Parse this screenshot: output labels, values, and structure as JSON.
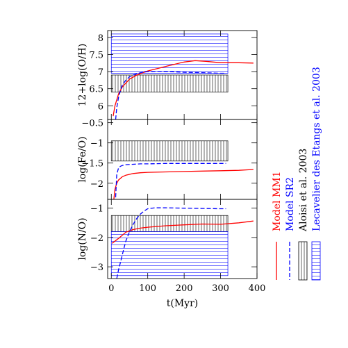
{
  "chart_data": [
    {
      "type": "line",
      "ylabel": "12+log(O/H)",
      "xlim": [
        -10,
        400
      ],
      "ylim": [
        5.6,
        8.2
      ],
      "yticks": [
        6,
        6.5,
        7,
        7.5,
        8
      ],
      "ytick_labels": [
        "6",
        "6.5",
        "7",
        "7.5",
        "8"
      ],
      "bands": [
        {
          "source": "Lecavelier des Etangs et al. 2003",
          "style": "horizontal-hatch",
          "x": [
            0,
            320
          ],
          "y": [
            6.95,
            8.1
          ]
        },
        {
          "source": "Aloisi et al. 2003",
          "style": "vertical-hatch",
          "x": [
            0,
            320
          ],
          "y": [
            6.4,
            6.9
          ]
        }
      ],
      "series": [
        {
          "name": "Model MM1",
          "color": "#ff0000",
          "dash": "solid",
          "x": [
            5,
            10,
            20,
            30,
            50,
            70,
            100,
            130,
            160,
            200,
            230,
            260,
            300,
            350,
            390
          ],
          "y": [
            5.7,
            6.0,
            6.35,
            6.55,
            6.78,
            6.9,
            7.02,
            7.1,
            7.18,
            7.28,
            7.32,
            7.3,
            7.26,
            7.26,
            7.25
          ]
        },
        {
          "name": "Model SR2",
          "color": "#0000ff",
          "dash": "dashed",
          "x": [
            12,
            15,
            20,
            25,
            30,
            40,
            50,
            60,
            80,
            100,
            130,
            160,
            200,
            250,
            300,
            315
          ],
          "y": [
            5.6,
            5.95,
            6.25,
            6.45,
            6.6,
            6.75,
            6.85,
            6.9,
            6.97,
            7.0,
            7.01,
            7.0,
            6.98,
            6.97,
            6.95,
            6.95
          ]
        }
      ]
    },
    {
      "type": "line",
      "ylabel": "log(Fe/O)",
      "xlim": [
        -10,
        400
      ],
      "ylim": [
        -2.4,
        -0.42
      ],
      "yticks": [
        -0.5,
        -1,
        -1.5,
        -2
      ],
      "ytick_labels": [
        "−0.5",
        "−1",
        "−1.5",
        "−2"
      ],
      "bands": [
        {
          "source": "Aloisi et al. 2003",
          "style": "vertical-hatch",
          "x": [
            0,
            320
          ],
          "y": [
            -1.45,
            -0.95
          ]
        }
      ],
      "series": [
        {
          "name": "Model MM1",
          "color": "#ff0000",
          "dash": "solid",
          "x": [
            7,
            10,
            15,
            20,
            30,
            40,
            60,
            80,
            100,
            150,
            200,
            250,
            300,
            350,
            390
          ],
          "y": [
            -2.4,
            -2.15,
            -2.0,
            -1.92,
            -1.84,
            -1.8,
            -1.76,
            -1.74,
            -1.73,
            -1.72,
            -1.71,
            -1.7,
            -1.69,
            -1.68,
            -1.66
          ]
        },
        {
          "name": "Model SR2",
          "color": "#0000ff",
          "dash": "dashed",
          "x": [
            12,
            15,
            20,
            25,
            30,
            40,
            60,
            80,
            100,
            150,
            200,
            250,
            300,
            315
          ],
          "y": [
            -2.35,
            -1.78,
            -1.62,
            -1.58,
            -1.56,
            -1.54,
            -1.53,
            -1.52,
            -1.52,
            -1.51,
            -1.51,
            -1.51,
            -1.51,
            -1.51
          ]
        }
      ]
    },
    {
      "type": "line",
      "ylabel": "log(N/O)",
      "xlabel": "t(Myr)",
      "xlim": [
        -10,
        400
      ],
      "ylim": [
        -3.4,
        -0.7
      ],
      "xticks": [
        0,
        100,
        200,
        300,
        400
      ],
      "xtick_labels": [
        "0",
        "100",
        "200",
        "300",
        "400"
      ],
      "yticks": [
        -1,
        -2,
        -3
      ],
      "ytick_labels": [
        "−1",
        "−2",
        "−3"
      ],
      "bands": [
        {
          "source": "Aloisi et al. 2003",
          "style": "vertical-hatch",
          "x": [
            0,
            320
          ],
          "y": [
            -1.8,
            -1.25
          ]
        },
        {
          "source": "Lecavelier des Etangs et al. 2003",
          "style": "horizontal-hatch",
          "x": [
            0,
            320
          ],
          "y": [
            -3.3,
            -1.8
          ]
        }
      ],
      "series": [
        {
          "name": "Model MM1",
          "color": "#ff0000",
          "dash": "solid",
          "x": [
            2,
            20,
            40,
            60,
            80,
            100,
            150,
            200,
            250,
            300,
            350,
            390
          ],
          "y": [
            -2.2,
            -2.03,
            -1.82,
            -1.73,
            -1.68,
            -1.65,
            -1.6,
            -1.57,
            -1.54,
            -1.55,
            -1.5,
            -1.44
          ]
        },
        {
          "name": "Model SR2",
          "color": "#0000ff",
          "dash": "dashed",
          "x": [
            15,
            20,
            25,
            30,
            35,
            40,
            50,
            60,
            70,
            80,
            90,
            100,
            120,
            150,
            200,
            250,
            300,
            315
          ],
          "y": [
            -3.4,
            -3.1,
            -2.85,
            -2.6,
            -2.35,
            -2.12,
            -1.8,
            -1.55,
            -1.35,
            -1.2,
            -1.1,
            -1.02,
            -0.99,
            -0.99,
            -1.0,
            -1.01,
            -1.02,
            -1.02
          ]
        }
      ]
    }
  ],
  "legend": {
    "placement": "right",
    "entries": [
      {
        "label": "Model MM1",
        "color": "#ff0000",
        "symbol": "solid-line"
      },
      {
        "label": "Model SR2",
        "color": "#0000ff",
        "symbol": "dashed-line"
      },
      {
        "label": "Aloisi et al. 2003",
        "color": "#000000",
        "symbol": "vertical-hatch-box"
      },
      {
        "label": "Lecavelier des Etangs et al. 2003",
        "color": "#0000ff",
        "symbol": "horizontal-hatch-box"
      }
    ]
  }
}
